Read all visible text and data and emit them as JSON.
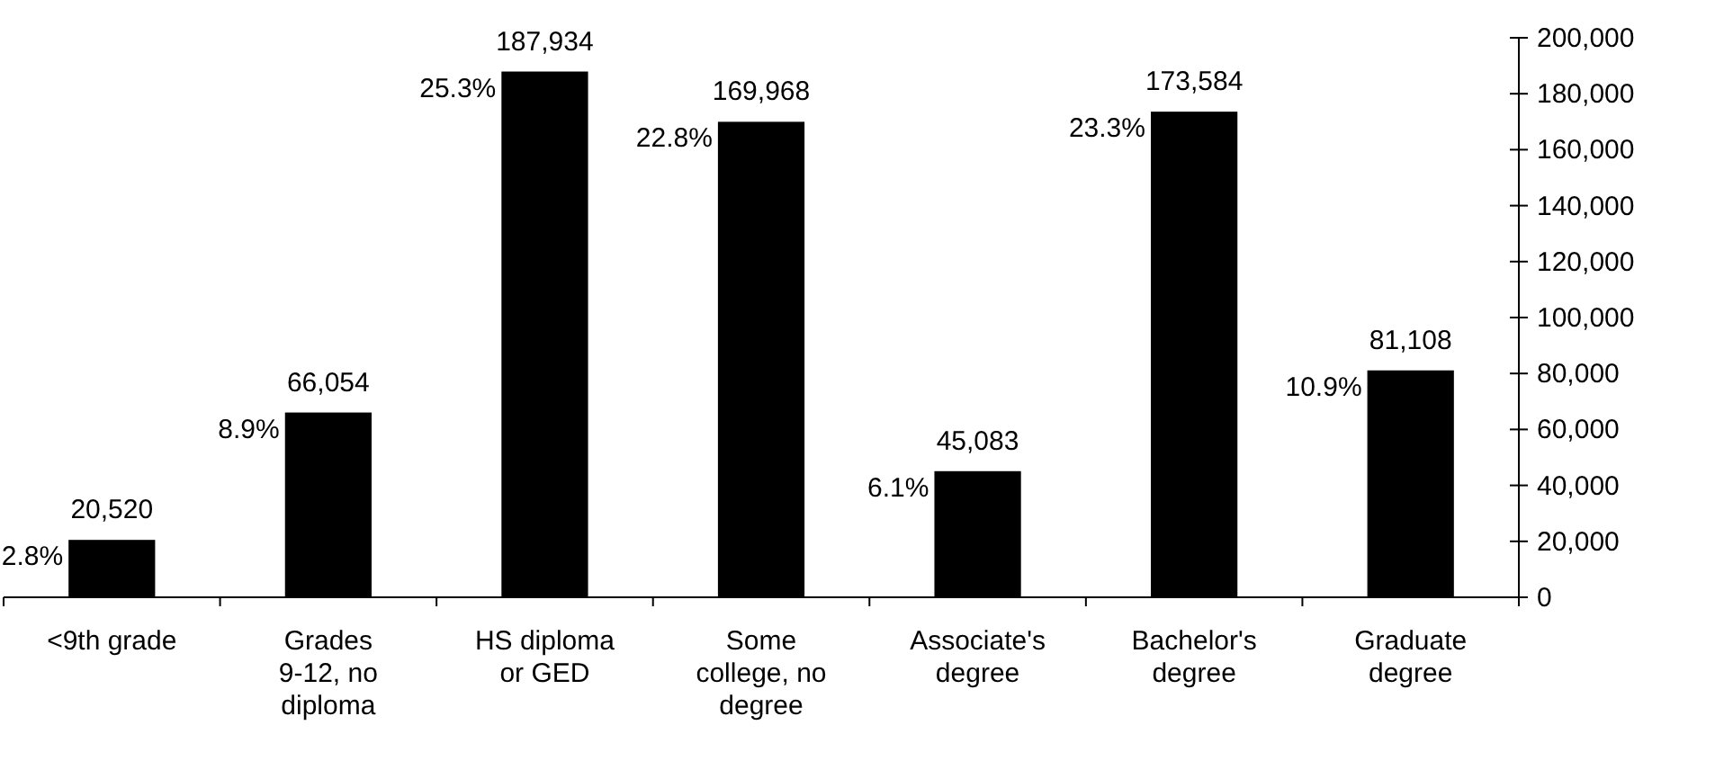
{
  "chart_data": {
    "type": "bar",
    "categories": [
      "<9th grade",
      "Grades 9-12, no diploma",
      "HS diploma or GED",
      "Some college, no degree",
      "Associate's degree",
      "Bachelor's degree",
      "Graduate degree"
    ],
    "series": [
      {
        "color": "#000000",
        "values": [
          20520,
          66054,
          187934,
          169968,
          45083,
          173584,
          81108
        ],
        "value_labels": [
          "20,520",
          "66,054",
          "187,934",
          "169,968",
          "45,083",
          "173,584",
          "81,108"
        ]
      }
    ],
    "ylim": [
      0,
      200000
    ],
    "yticks": [
      0,
      {
        "value": 20000,
        "label": "20,000"
      },
      {
        "value": 40000,
        "label": "40,000"
      },
      {
        "value": 60000,
        "label": "60,000"
      },
      {
        "value": 80000,
        "label": "80,000"
      },
      {
        "value": 100000,
        "label": "100,000"
      },
      {
        "value": 120000,
        "label": "120,000"
      },
      {
        "value": 140000,
        "label": "140,000"
      },
      {
        "value": 160000,
        "label": "160,000"
      },
      {
        "value": 180000,
        "label": "180,000"
      },
      {
        "value": 200000,
        "label": "200,000"
      }
    ],
    "grid": false,
    "annotations": [
      {
        "text": "2.8%",
        "x": "<9th grade",
        "y": 20520
      },
      {
        "text": "8.9%",
        "x": "Grades 9-12, no diploma",
        "y": 66054
      },
      {
        "text": "25.3%",
        "x": "HS diploma or GED",
        "y": 187934
      },
      {
        "text": "22.8%",
        "x": "Some college, no degree",
        "y": 169968
      },
      {
        "text": "6.1%",
        "x": "Associate's degree",
        "y": 45083
      },
      {
        "text": "23.3%",
        "x": "Bachelor's degree",
        "y": 173584
      },
      {
        "text": "10.9%",
        "x": "Graduate degree",
        "y": 81108
      }
    ]
  }
}
